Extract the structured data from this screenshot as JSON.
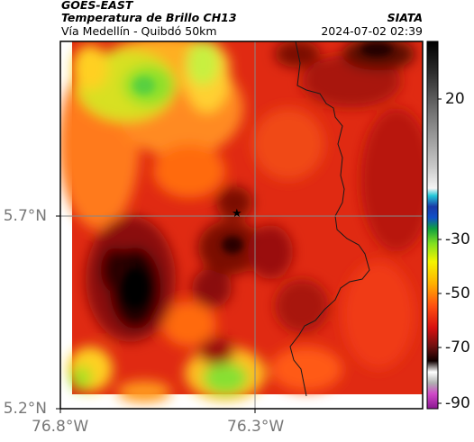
{
  "header": {
    "satellite": "GOES-EAST",
    "product": "Temperatura de Brillo CH13",
    "region": "Vía Medellín - Quibdó 50km",
    "source": "SIATA",
    "datetime": "2024-07-02 02:39"
  },
  "axes": {
    "lat_ticks": [
      "5.7°N",
      "5.2°N"
    ],
    "lon_ticks": [
      "76.8°W",
      "76.3°W"
    ]
  },
  "colorbar": {
    "tick_labels": [
      "20",
      "-30",
      "-50",
      "-70",
      "-90"
    ]
  },
  "marker": {
    "symbol": "★"
  }
}
